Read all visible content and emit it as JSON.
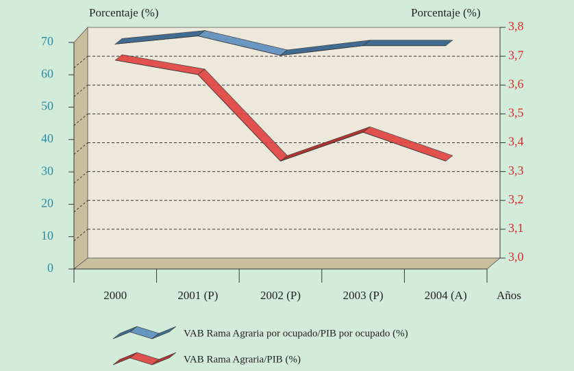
{
  "chart_data": {
    "type": "line",
    "ylabel": "Porcentaje (%)",
    "y2label": "Porcentaje (%)",
    "xlabel": "Años",
    "categories": [
      "2000",
      "2001 (P)",
      "2002 (P)",
      "2003 (P)",
      "2004 (A)"
    ],
    "series": [
      {
        "name": "VAB Rama Agraria por ocupado/PIB por ocupado (%)",
        "color": "#5b8fbf",
        "values": [
          69.5,
          72,
          66,
          69,
          69
        ]
      },
      {
        "name": "VAB Rama Agraria/PIB (%)",
        "color": "#e0423f",
        "axis": "y2",
        "values": [
          3.71,
          3.66,
          3.36,
          3.46,
          3.36
        ]
      }
    ],
    "ylim": [
      0,
      70
    ],
    "yticks": [
      0,
      10,
      20,
      30,
      40,
      50,
      60,
      70
    ],
    "y2lim": [
      3.0,
      3.8
    ],
    "y2ticks": [
      {
        "value": 3.0,
        "label": "3,0"
      },
      {
        "value": 3.1,
        "label": "3,1"
      },
      {
        "value": 3.2,
        "label": "3,2"
      },
      {
        "value": 3.3,
        "label": "3,3"
      },
      {
        "value": 3.4,
        "label": "3,4"
      },
      {
        "value": 3.5,
        "label": "3,5"
      },
      {
        "value": 3.6,
        "label": "3,6"
      },
      {
        "value": 3.7,
        "label": "3,7"
      },
      {
        "value": 3.8,
        "label": "3,8"
      }
    ],
    "grid": true
  }
}
